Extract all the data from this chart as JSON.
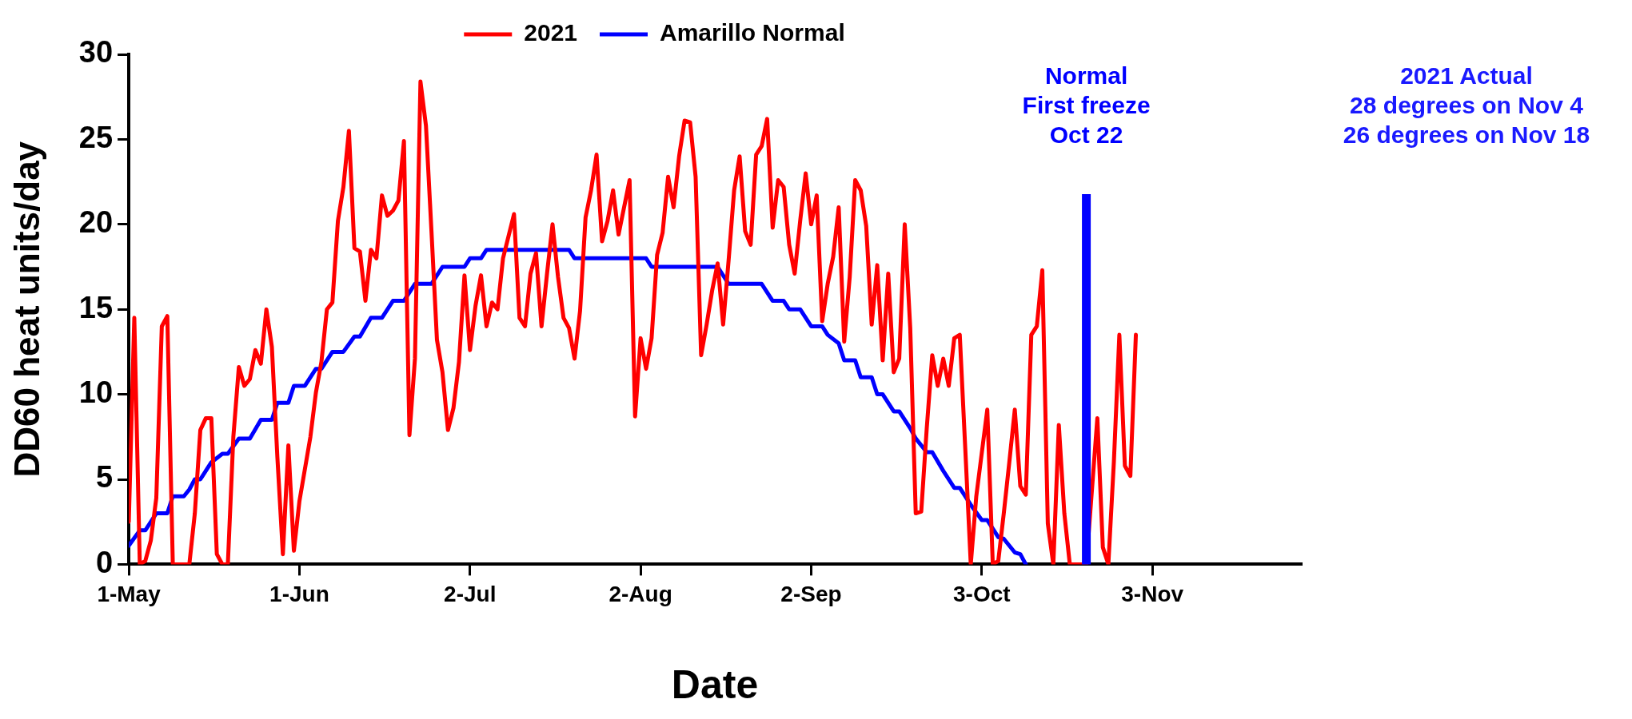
{
  "chart_data": {
    "type": "line",
    "xlabel": "Date",
    "ylabel": "DD60 heat units/day",
    "xlim": [
      "--05-01",
      "--11-30"
    ],
    "xticks": [
      {
        "value": "--05-01",
        "label": "1-May"
      },
      {
        "value": "--06-01",
        "label": "1-Jun"
      },
      {
        "value": "--07-02",
        "label": "2-Jul"
      },
      {
        "value": "--08-02",
        "label": "2-Aug"
      },
      {
        "value": "--09-02",
        "label": "2-Sep"
      },
      {
        "value": "--10-03",
        "label": "3-Oct"
      },
      {
        "value": "--11-03",
        "label": "3-Nov"
      }
    ],
    "ylim": [
      0,
      30
    ],
    "yticks": [
      0,
      5,
      10,
      15,
      20,
      25,
      30
    ],
    "grid": false,
    "legend": "top",
    "marker": "none",
    "line_style": "solid",
    "series": [
      {
        "name": "2021",
        "color": "#ff0000",
        "x": [
          "--05-01",
          "--05-02",
          "--05-03",
          "--05-04",
          "--05-05",
          "--05-06",
          "--05-07",
          "--05-08",
          "--05-09",
          "--05-10",
          "--05-12",
          "--05-13",
          "--05-14",
          "--05-15",
          "--05-16",
          "--05-17",
          "--05-18",
          "--05-19",
          "--05-20",
          "--05-21",
          "--05-22",
          "--05-23",
          "--05-24",
          "--05-25",
          "--05-26",
          "--05-27",
          "--05-28",
          "--05-29",
          "--05-30",
          "--05-31",
          "--06-01",
          "--06-03",
          "--06-04",
          "--06-05",
          "--06-06",
          "--06-07",
          "--06-08",
          "--06-09",
          "--06-10",
          "--06-11",
          "--06-12",
          "--06-13",
          "--06-14",
          "--06-15",
          "--06-16",
          "--06-17",
          "--06-18",
          "--06-19",
          "--06-20",
          "--06-21",
          "--06-22",
          "--06-23",
          "--06-24",
          "--06-25",
          "--06-26",
          "--06-27",
          "--06-28",
          "--06-29",
          "--06-30",
          "--07-01",
          "--07-02",
          "--07-03",
          "--07-04",
          "--07-05",
          "--07-06",
          "--07-07",
          "--07-08",
          "--07-10",
          "--07-11",
          "--07-12",
          "--07-13",
          "--07-14",
          "--07-15",
          "--07-16",
          "--07-17",
          "--07-18",
          "--07-19",
          "--07-20",
          "--07-21",
          "--07-22",
          "--07-23",
          "--07-24",
          "--07-25",
          "--07-26",
          "--07-27",
          "--07-28",
          "--07-29",
          "--07-31",
          "--08-01",
          "--08-02",
          "--08-03",
          "--08-04",
          "--08-05",
          "--08-06",
          "--08-07",
          "--08-08",
          "--08-09",
          "--08-10",
          "--08-11",
          "--08-12",
          "--08-13",
          "--08-14",
          "--08-15",
          "--08-16",
          "--08-17",
          "--08-18",
          "--08-19",
          "--08-20",
          "--08-21",
          "--08-22",
          "--08-23",
          "--08-24",
          "--08-25",
          "--08-26",
          "--08-27",
          "--08-28",
          "--08-29",
          "--08-30",
          "--08-31",
          "--09-01",
          "--09-02",
          "--09-03",
          "--09-04",
          "--09-05",
          "--09-06",
          "--09-07",
          "--09-08",
          "--09-09",
          "--09-10",
          "--09-11",
          "--09-12",
          "--09-13",
          "--09-14",
          "--09-15",
          "--09-16",
          "--09-17",
          "--09-18",
          "--09-19",
          "--09-20",
          "--09-21",
          "--09-22",
          "--09-23",
          "--09-24",
          "--09-25",
          "--09-26",
          "--09-27",
          "--09-28",
          "--09-29",
          "--09-30",
          "--10-01",
          "--10-02",
          "--10-04",
          "--10-05",
          "--10-06",
          "--10-07",
          "--10-08",
          "--10-09",
          "--10-10",
          "--10-11",
          "--10-12",
          "--10-13",
          "--10-14",
          "--10-15",
          "--10-16",
          "--10-17",
          "--10-18",
          "--10-19",
          "--10-22",
          "--10-24",
          "--10-25",
          "--10-26",
          "--10-27",
          "--10-28",
          "--10-29",
          "--10-30",
          "--10-31"
        ],
        "values": [
          2.5,
          14.5,
          0,
          0.2,
          1.4,
          3.9,
          14,
          14.6,
          0,
          0,
          0,
          3,
          7.9,
          8.6,
          8.6,
          0.6,
          0,
          0,
          7.5,
          11.6,
          10.5,
          10.9,
          12.6,
          11.8,
          15,
          12.8,
          6.3,
          0.6,
          7,
          0.8,
          3.7,
          7.5,
          10.1,
          11.9,
          15,
          15.4,
          20.2,
          22.2,
          25.5,
          18.6,
          18.4,
          15.5,
          18.5,
          18,
          21.7,
          20.5,
          20.8,
          21.4,
          24.9,
          7.6,
          12.1,
          28.4,
          25.8,
          19.6,
          13.2,
          11.3,
          7.9,
          9.2,
          11.9,
          17,
          12.6,
          15.2,
          17,
          14,
          15.4,
          15,
          18,
          20.6,
          14.5,
          14,
          17.1,
          18.3,
          14,
          17.1,
          20,
          16.9,
          14.5,
          13.9,
          12.1,
          14.9,
          20.4,
          22,
          24.1,
          19,
          20.2,
          22,
          19.4,
          22.6,
          8.7,
          13.3,
          11.5,
          13.3,
          18.2,
          19.5,
          22.8,
          21,
          24,
          26.1,
          26,
          22.8,
          12.3,
          14.1,
          16.1,
          17.7,
          14.1,
          17.9,
          22,
          24,
          19.6,
          18.8,
          24.1,
          24.6,
          26.2,
          19.8,
          22.6,
          22.2,
          18.8,
          17.1,
          20.2,
          23,
          20,
          21.7,
          14.3,
          16.5,
          18.1,
          21,
          13.1,
          16.9,
          22.6,
          22,
          19.9,
          14.1,
          17.6,
          12,
          17.1,
          11.3,
          12.1,
          20,
          13.9,
          3,
          3.1,
          8,
          12.3,
          10.5,
          12.1,
          10.5,
          13.3,
          13.5,
          6.8,
          0,
          4,
          9.1,
          0,
          0.2,
          3,
          6,
          9.1,
          4.6,
          4.1,
          13.5,
          14,
          17.3,
          2.4,
          0,
          8.2,
          3,
          0,
          0,
          8.6,
          1,
          0,
          6,
          13.5,
          5.8,
          5.2,
          13.5
        ]
      },
      {
        "name": "Amarillo Normal",
        "color": "#0000ff",
        "x": [
          "--05-01",
          "--05-03",
          "--05-04",
          "--05-06",
          "--05-08",
          "--05-09",
          "--05-11",
          "--05-12",
          "--05-13",
          "--05-14",
          "--05-16",
          "--05-18",
          "--05-19",
          "--05-21",
          "--05-23",
          "--05-25",
          "--05-27",
          "--05-28",
          "--05-30",
          "--05-31",
          "--06-02",
          "--06-04",
          "--06-05",
          "--06-07",
          "--06-09",
          "--06-11",
          "--06-12",
          "--06-14",
          "--06-16",
          "--06-18",
          "--06-20",
          "--06-22",
          "--06-25",
          "--06-27",
          "--07-01",
          "--07-02",
          "--07-04",
          "--07-05",
          "--07-20",
          "--07-21",
          "--08-03",
          "--08-04",
          "--08-16",
          "--08-18",
          "--08-24",
          "--08-26",
          "--08-28",
          "--08-29",
          "--08-31",
          "--09-02",
          "--09-04",
          "--09-05",
          "--09-07",
          "--09-08",
          "--09-10",
          "--09-11",
          "--09-13",
          "--09-14",
          "--09-15",
          "--09-17",
          "--09-18",
          "--09-20",
          "--09-21",
          "--09-23",
          "--09-24",
          "--09-26",
          "--09-28",
          "--09-29",
          "--10-01",
          "--10-03",
          "--10-04",
          "--10-06",
          "--10-07",
          "--10-09",
          "--10-10",
          "--10-11"
        ],
        "values": [
          1.1,
          2,
          2,
          3,
          3,
          4,
          4,
          4.4,
          5,
          5,
          6,
          6.5,
          6.5,
          7.4,
          7.4,
          8.5,
          8.5,
          9.5,
          9.5,
          10.5,
          10.5,
          11.5,
          11.5,
          12.5,
          12.5,
          13.4,
          13.4,
          14.5,
          14.5,
          15.5,
          15.5,
          16.5,
          16.5,
          17.5,
          17.5,
          18,
          18,
          18.5,
          18.5,
          18,
          18,
          17.5,
          17.5,
          16.5,
          16.5,
          15.5,
          15.5,
          15,
          15,
          14,
          14,
          13.5,
          13,
          12,
          12,
          11,
          11,
          10,
          10,
          9,
          9,
          8,
          7.4,
          6.6,
          6.6,
          5.5,
          4.5,
          4.5,
          3.5,
          2.6,
          2.6,
          1.6,
          1.5,
          0.7,
          0.6,
          0
        ]
      }
    ],
    "ref_lines": [
      {
        "axis": "x",
        "value": "--10-22",
        "label": "Normal\nFirst freeze\nOct 22",
        "color": "#0000ff"
      }
    ],
    "annotations": [
      "2021 Actual\n28 degrees on Nov 4\n26 degrees on Nov 18"
    ]
  }
}
